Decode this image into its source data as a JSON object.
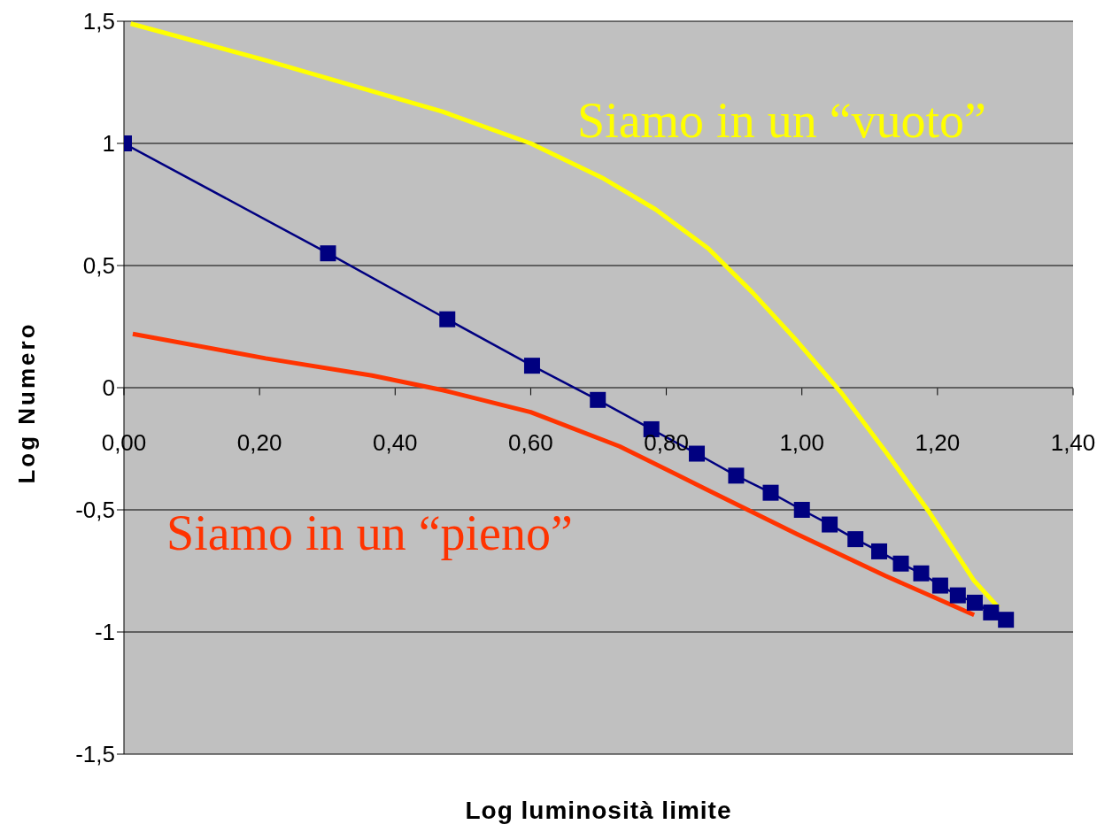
{
  "chart_data": {
    "type": "line",
    "xlabel": "Log luminosità limite",
    "ylabel": "Log Numero",
    "xlim": [
      0,
      1.4
    ],
    "xticks": [
      {
        "value": 0,
        "label": "0,00"
      },
      {
        "value": 0.2,
        "label": "0,20"
      },
      {
        "value": 0.4,
        "label": "0,40"
      },
      {
        "value": 0.6,
        "label": "0,60"
      },
      {
        "value": 0.8,
        "label": "0,80"
      },
      {
        "value": 1,
        "label": "1,00"
      },
      {
        "value": 1.2,
        "label": "1,20"
      },
      {
        "value": 1.4,
        "label": "1,40"
      }
    ],
    "ylim": [
      -1.5,
      1.5
    ],
    "yticks": [
      {
        "value": -1.5,
        "label": "-1,5"
      },
      -1,
      {
        "value": -0.5,
        "label": "-0,5"
      },
      0,
      {
        "value": 0.5,
        "label": "0,5"
      },
      1,
      {
        "value": 1.5,
        "label": "1,5"
      }
    ],
    "grid": "y",
    "legend": false,
    "series": [
      {
        "color": "#000080",
        "marker": "square",
        "x": [
          0,
          0.301,
          0.477,
          0.602,
          0.699,
          0.778,
          0.845,
          0.903,
          0.954,
          1.0,
          1.041,
          1.079,
          1.114,
          1.146,
          1.176,
          1.204,
          1.23,
          1.255,
          1.279,
          1.301
        ],
        "values": [
          1.0,
          0.55,
          0.28,
          0.09,
          -0.05,
          -0.17,
          -0.27,
          -0.36,
          -0.43,
          -0.5,
          -0.56,
          -0.62,
          -0.67,
          -0.72,
          -0.76,
          -0.81,
          -0.85,
          -0.88,
          -0.92,
          -0.95
        ]
      },
      {
        "name": "Siamo in un “vuoto”",
        "color": "#ffff00",
        "marker": "none",
        "x": [
          0.01,
          0.209,
          0.47,
          0.6,
          0.705,
          0.784,
          0.862,
          0.927,
          0.993,
          1.058,
          1.123,
          1.188,
          1.254,
          1.29
        ],
        "values": [
          1.49,
          1.34,
          1.13,
          1.0,
          0.86,
          0.73,
          0.57,
          0.39,
          0.19,
          -0.02,
          -0.26,
          -0.51,
          -0.79,
          -0.9
        ]
      },
      {
        "name": "Siamo in un “pieno”",
        "color": "#ff3300",
        "marker": "none",
        "x": [
          0.013,
          0.209,
          0.366,
          0.47,
          0.6,
          0.731,
          0.862,
          0.993,
          1.123,
          1.254
        ],
        "values": [
          0.22,
          0.12,
          0.05,
          -0.01,
          -0.1,
          -0.24,
          -0.42,
          -0.6,
          -0.77,
          -0.93
        ]
      }
    ]
  }
}
